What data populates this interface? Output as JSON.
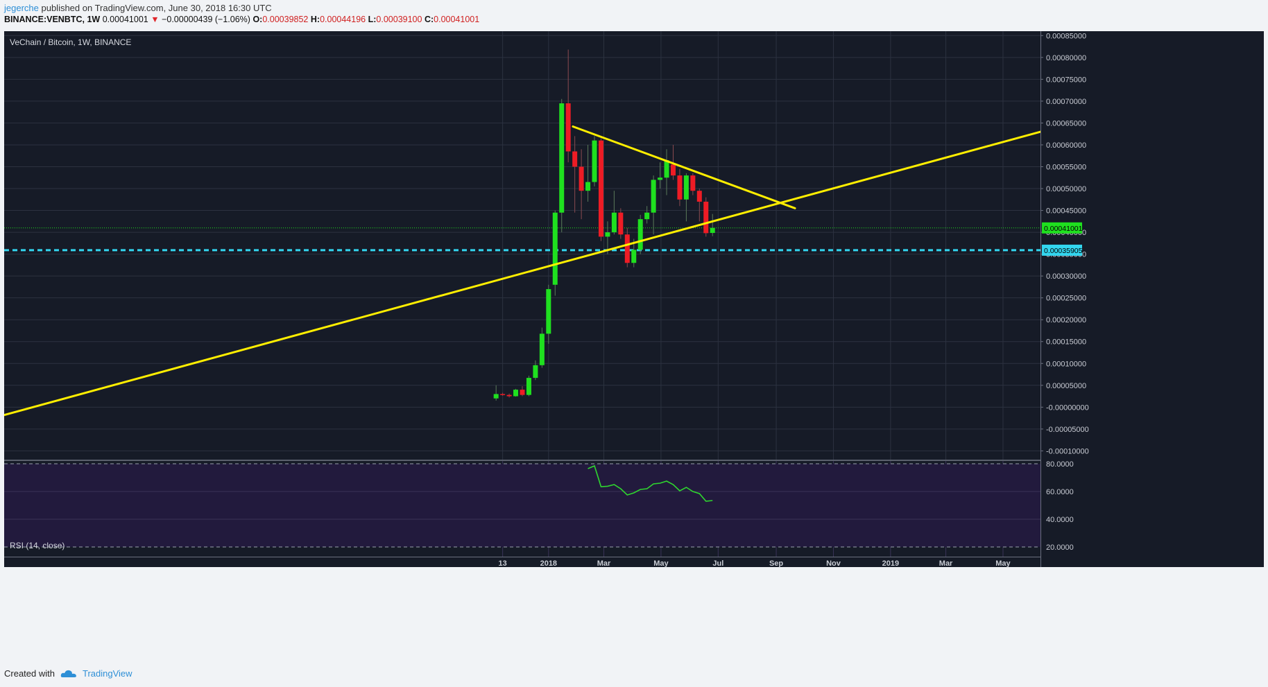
{
  "header": {
    "user": "jegerche",
    "published": " published on TradingView.com, June 30, 2018 16:30 UTC",
    "symbol": "BINANCE:VENBTC, 1W",
    "last": "0.00041001",
    "change": "−0.00000439 (−1.06%)",
    "o_label": "O:",
    "o_value": "0.00039852",
    "h_label": "H:",
    "h_value": "0.00044196",
    "l_label": "L:",
    "l_value": "0.00039100",
    "c_label": "C:",
    "c_value": "0.00041001"
  },
  "footer": {
    "created": "Created with",
    "brand": "TradingView"
  },
  "colors": {
    "background": "#161b27",
    "rsi_background": "#221a3d",
    "up": "#1fe01f",
    "down": "#ee1c25",
    "trendline": "#ffee00",
    "support": "#33d6ef",
    "rsi_line": "#2fd62f",
    "grid": "#2c3240"
  },
  "chart_data": {
    "type": "candlestick",
    "title": "VeChain / Bitcoin, 1W, BINANCE",
    "price_axis": {
      "ticks": [
        "0.00085000",
        "0.00080000",
        "0.00075000",
        "0.00070000",
        "0.00065000",
        "0.00060000",
        "0.00055000",
        "0.00050000",
        "0.00045000",
        "0.00040000",
        "0.00035000",
        "0.00030000",
        "0.00025000",
        "0.00020000",
        "0.00015000",
        "0.00010000",
        "0.00005000",
        "-0.00000000",
        "-0.00005000",
        "-0.00010000"
      ],
      "tick_values": [
        0.00085,
        0.0008,
        0.00075,
        0.0007,
        0.00065,
        0.0006,
        0.00055,
        0.0005,
        0.00045,
        0.0004,
        0.00035,
        0.0003,
        0.00025,
        0.0002,
        0.00015,
        0.0001,
        5e-05,
        0,
        -5e-05,
        -0.0001
      ],
      "ylim": [
        -0.00012,
        0.00086
      ]
    },
    "time_axis": {
      "labels": [
        "13",
        "2018",
        "Mar",
        "May",
        "Jul",
        "Sep",
        "Nov",
        "2019",
        "Mar",
        "May"
      ],
      "dates": [
        "2017-11-13",
        "2018-01-01",
        "2018-03-01",
        "2018-05-01",
        "2018-07-01",
        "2018-09-01",
        "2018-11-01",
        "2019-01-01",
        "2019-03-01",
        "2019-05-01"
      ],
      "xlim": [
        "2016-05-30",
        "2019-06-10"
      ]
    },
    "candles": [
      {
        "date": "2017-11-06",
        "o": 2e-05,
        "h": 5e-05,
        "l": 1.5e-05,
        "c": 3e-05
      },
      {
        "date": "2017-11-13",
        "o": 3e-05,
        "h": 3.3e-05,
        "l": 2.6e-05,
        "c": 2.8e-05
      },
      {
        "date": "2017-11-20",
        "o": 2.8e-05,
        "h": 3.1e-05,
        "l": 2.2e-05,
        "c": 2.5e-05
      },
      {
        "date": "2017-11-27",
        "o": 2.5e-05,
        "h": 4.2e-05,
        "l": 2.4e-05,
        "c": 4e-05
      },
      {
        "date": "2017-12-04",
        "o": 4e-05,
        "h": 4.8e-05,
        "l": 2.5e-05,
        "c": 2.8e-05
      },
      {
        "date": "2017-12-11",
        "o": 2.8e-05,
        "h": 7.2e-05,
        "l": 2.5e-05,
        "c": 6.7e-05
      },
      {
        "date": "2017-12-18",
        "o": 6.7e-05,
        "h": 0.000107,
        "l": 6.2e-05,
        "c": 9.6e-05
      },
      {
        "date": "2017-12-25",
        "o": 9.6e-05,
        "h": 0.000182,
        "l": 9e-05,
        "c": 0.000168
      },
      {
        "date": "2018-01-01",
        "o": 0.000168,
        "h": 0.00028,
        "l": 0.000145,
        "c": 0.00027
      },
      {
        "date": "2018-01-08",
        "o": 0.00028,
        "h": 0.00045,
        "l": 0.000255,
        "c": 0.000445
      },
      {
        "date": "2018-01-15",
        "o": 0.000445,
        "h": 0.000705,
        "l": 0.0004,
        "c": 0.000695
      },
      {
        "date": "2018-01-22",
        "o": 0.000695,
        "h": 0.000818,
        "l": 0.00056,
        "c": 0.000585
      },
      {
        "date": "2018-01-29",
        "o": 0.000585,
        "h": 0.00062,
        "l": 0.000445,
        "c": 0.00055
      },
      {
        "date": "2018-02-05",
        "o": 0.00055,
        "h": 0.00059,
        "l": 0.00043,
        "c": 0.000495
      },
      {
        "date": "2018-02-12",
        "o": 0.000495,
        "h": 0.0006,
        "l": 0.00047,
        "c": 0.000515
      },
      {
        "date": "2018-02-19",
        "o": 0.000515,
        "h": 0.00062,
        "l": 0.000505,
        "c": 0.00061
      },
      {
        "date": "2018-02-26",
        "o": 0.00061,
        "h": 0.000615,
        "l": 0.00038,
        "c": 0.00039
      },
      {
        "date": "2018-03-05",
        "o": 0.00039,
        "h": 0.000425,
        "l": 0.00035,
        "c": 0.0004
      },
      {
        "date": "2018-03-12",
        "o": 0.0004,
        "h": 0.000495,
        "l": 0.000395,
        "c": 0.000445
      },
      {
        "date": "2018-03-19",
        "o": 0.000445,
        "h": 0.000455,
        "l": 0.000385,
        "c": 0.000395
      },
      {
        "date": "2018-03-26",
        "o": 0.000395,
        "h": 0.00041,
        "l": 0.00032,
        "c": 0.00033
      },
      {
        "date": "2018-04-02",
        "o": 0.00033,
        "h": 0.000385,
        "l": 0.00032,
        "c": 0.00036
      },
      {
        "date": "2018-04-09",
        "o": 0.00036,
        "h": 0.00044,
        "l": 0.00035,
        "c": 0.00043
      },
      {
        "date": "2018-04-16",
        "o": 0.00043,
        "h": 0.00046,
        "l": 0.00042,
        "c": 0.000445
      },
      {
        "date": "2018-04-23",
        "o": 0.000445,
        "h": 0.00053,
        "l": 0.000395,
        "c": 0.00052
      },
      {
        "date": "2018-04-30",
        "o": 0.00052,
        "h": 0.00056,
        "l": 0.0005,
        "c": 0.000525
      },
      {
        "date": "2018-05-07",
        "o": 0.000525,
        "h": 0.00059,
        "l": 0.000485,
        "c": 0.000565
      },
      {
        "date": "2018-05-14",
        "o": 0.000555,
        "h": 0.0006,
        "l": 0.00052,
        "c": 0.00053
      },
      {
        "date": "2018-05-21",
        "o": 0.00053,
        "h": 0.000545,
        "l": 0.00046,
        "c": 0.000475
      },
      {
        "date": "2018-05-28",
        "o": 0.000475,
        "h": 0.000535,
        "l": 0.000425,
        "c": 0.00053
      },
      {
        "date": "2018-06-04",
        "o": 0.00053,
        "h": 0.000535,
        "l": 0.000485,
        "c": 0.000495
      },
      {
        "date": "2018-06-11",
        "o": 0.000495,
        "h": 0.0005,
        "l": 0.000425,
        "c": 0.00047
      },
      {
        "date": "2018-06-18",
        "o": 0.00047,
        "h": 0.00048,
        "l": 0.00039,
        "c": 0.000398
      },
      {
        "date": "2018-06-25",
        "o": 0.00039852,
        "h": 0.00044196,
        "l": 0.000391,
        "c": 0.00041001
      }
    ],
    "trendlines": [
      {
        "name": "descending",
        "from": {
          "date": "2018-01-27",
          "price": 0.000642
        },
        "to": {
          "date": "2018-09-21",
          "price": 0.000455
        }
      },
      {
        "name": "ascending",
        "from": {
          "date": "2016-05-30",
          "price": -1.8e-05
        },
        "to": {
          "date": "2019-06-10",
          "price": 0.00063
        }
      }
    ],
    "horizontal_lines": [
      {
        "price": 0.00041001,
        "label": "0.00041001",
        "style": "dotted"
      },
      {
        "price": 0.00035905,
        "label": "0.00035905",
        "style": "dashed"
      }
    ],
    "rsi": {
      "title": "RSI (14, close)",
      "ticks": [
        "80.0000",
        "60.0000",
        "40.0000",
        "20.0000"
      ],
      "tick_values": [
        80,
        60,
        40,
        20
      ],
      "band": [
        20,
        80
      ],
      "ylim": [
        13,
        82
      ],
      "points": [
        {
          "date": "2018-02-12",
          "v": 76.5
        },
        {
          "date": "2018-02-19",
          "v": 78.5
        },
        {
          "date": "2018-02-26",
          "v": 63.5
        },
        {
          "date": "2018-03-05",
          "v": 63.8
        },
        {
          "date": "2018-03-12",
          "v": 65.0
        },
        {
          "date": "2018-03-19",
          "v": 62.0
        },
        {
          "date": "2018-03-26",
          "v": 57.5
        },
        {
          "date": "2018-04-02",
          "v": 59.0
        },
        {
          "date": "2018-04-09",
          "v": 61.5
        },
        {
          "date": "2018-04-16",
          "v": 62.0
        },
        {
          "date": "2018-04-23",
          "v": 65.5
        },
        {
          "date": "2018-04-30",
          "v": 66.0
        },
        {
          "date": "2018-05-07",
          "v": 67.5
        },
        {
          "date": "2018-05-14",
          "v": 65.0
        },
        {
          "date": "2018-05-21",
          "v": 60.5
        },
        {
          "date": "2018-05-28",
          "v": 63.0
        },
        {
          "date": "2018-06-04",
          "v": 60.0
        },
        {
          "date": "2018-06-11",
          "v": 58.5
        },
        {
          "date": "2018-06-18",
          "v": 53.0
        },
        {
          "date": "2018-06-25",
          "v": 53.5
        }
      ]
    }
  }
}
